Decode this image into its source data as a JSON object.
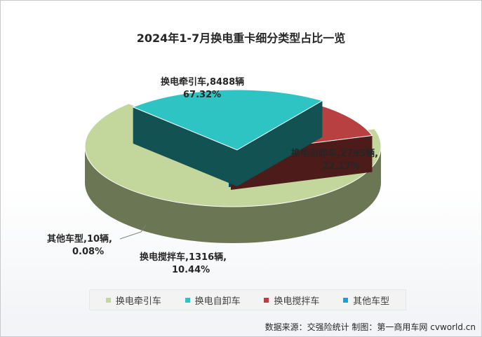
{
  "title": "2024年1-7月换电重卡细分类型占比一览",
  "chart_data": {
    "type": "pie",
    "title": "2024年1-7月换电重卡细分类型占比一览",
    "slices": [
      {
        "name": "换电牵引车",
        "count": 8488,
        "unit": "辆",
        "percent": 67.32,
        "color": "#c3d69b",
        "label_line1": "换电牵引车,8488辆",
        "label_line2": "67.32%"
      },
      {
        "name": "换电自卸车",
        "count": 2795,
        "unit": "辆",
        "percent": 22.17,
        "color": "#2ec4c4",
        "label_line1": "换电自卸车,2795辆,",
        "label_line2": "22.17%"
      },
      {
        "name": "换电搅拌车",
        "count": 1316,
        "unit": "辆",
        "percent": 10.44,
        "color": "#b94040",
        "label_line1": "换电搅拌车,1316辆,",
        "label_line2": "10.44%"
      },
      {
        "name": "其他车型",
        "count": 10,
        "unit": "辆",
        "percent": 0.08,
        "color": "#10a3e0",
        "label_line1": "其他车型,10辆,",
        "label_line2": "0.08%"
      }
    ],
    "legend": [
      "换电牵引车",
      "换电自卸车",
      "换电搅拌车",
      "其他车型"
    ],
    "legend_position": "bottom"
  },
  "source": "数据来源：交强险统计  制图：第一商用车网 cvworld.cn"
}
